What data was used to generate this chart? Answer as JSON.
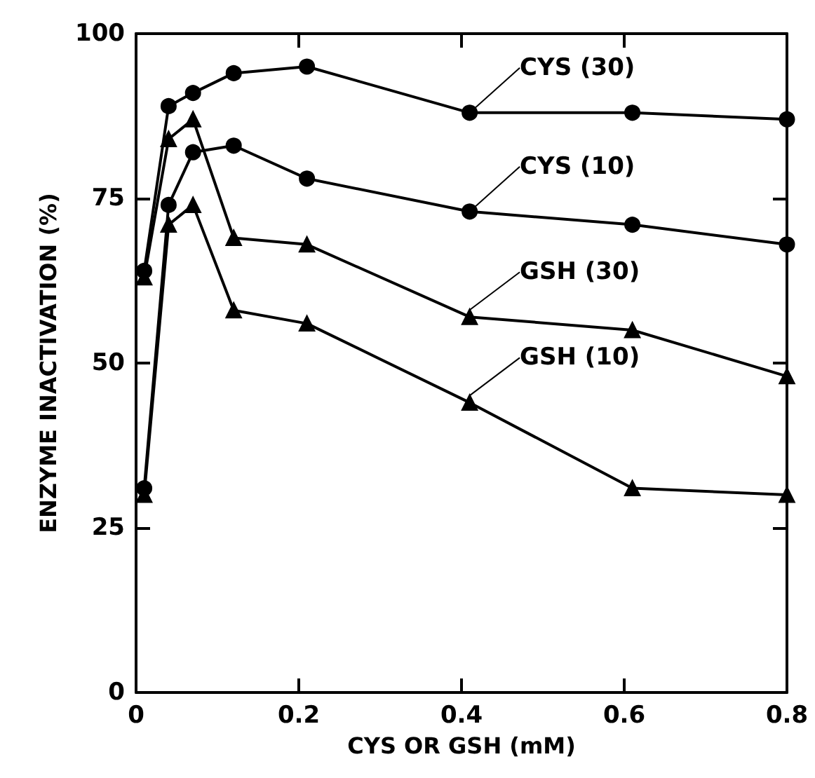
{
  "chart_data": {
    "type": "line",
    "xlabel": "CYS OR GSH (mM)",
    "ylabel": "ENZYME INACTIVATION (%)",
    "x": [
      0.01,
      0.04,
      0.07,
      0.12,
      0.21,
      0.41,
      0.61,
      0.8
    ],
    "series": [
      {
        "name": "CYS (30)",
        "color": "#000000",
        "marker": "circle",
        "values": [
          64,
          89,
          91,
          94,
          95,
          88,
          88,
          87
        ]
      },
      {
        "name": "CYS (10)",
        "color": "#000000",
        "marker": "circle",
        "values": [
          31,
          74,
          82,
          83,
          78,
          73,
          71,
          68
        ]
      },
      {
        "name": "GSH (30)",
        "color": "#000000",
        "marker": "triangle",
        "values": [
          63,
          84,
          87,
          69,
          68,
          57,
          55,
          48
        ]
      },
      {
        "name": "GSH (10)",
        "color": "#000000",
        "marker": "triangle",
        "values": [
          30,
          71,
          74,
          58,
          56,
          44,
          31,
          30
        ]
      }
    ],
    "xlim": [
      0,
      0.8
    ],
    "xticks": [
      0,
      0.2,
      0.4,
      0.6,
      0.8
    ],
    "ylim": [
      0,
      100
    ],
    "yticks": [
      0,
      25,
      50,
      75,
      100
    ],
    "grid": false,
    "legend": "right",
    "line_style": "solid"
  }
}
